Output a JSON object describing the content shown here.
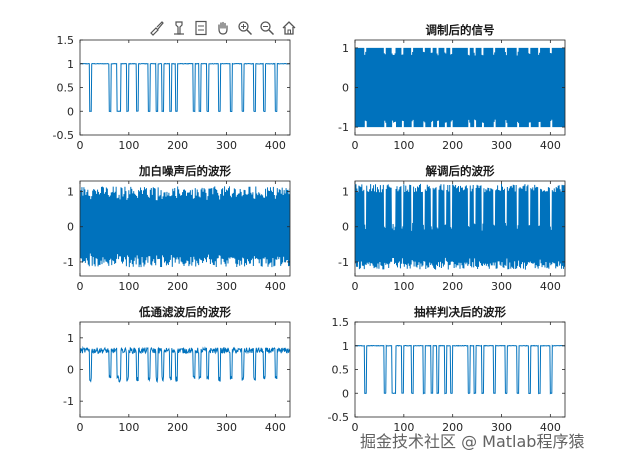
{
  "toolbar": {
    "icons": [
      "brush-icon",
      "data-tip-icon",
      "legend-icon",
      "pan-hand-icon",
      "zoom-in-icon",
      "zoom-out-icon",
      "home-icon"
    ]
  },
  "watermark": "掘金技术社区 @ Matlab程序猿",
  "colors": {
    "line": "#0072BD",
    "axis": "#262626",
    "background": "#ffffff"
  },
  "chart_data": [
    {
      "id": "p1",
      "type": "line",
      "title": "",
      "xlim": [
        0,
        430
      ],
      "ylim": [
        -0.5,
        1.5
      ],
      "xticks": [
        0,
        100,
        200,
        300,
        400
      ],
      "yticks": [
        -0.5,
        0,
        0.5,
        1,
        1.5
      ],
      "yticklabels": [
        "-0.5",
        "0",
        "0.5",
        "1",
        "1.5"
      ],
      "signal": "binary",
      "low": 0,
      "high": 1,
      "noise": 0.01,
      "bit_period": 4,
      "bits": [
        1,
        1,
        1,
        1,
        1,
        0,
        1,
        1,
        1,
        1,
        1,
        1,
        1,
        1,
        1,
        0,
        1,
        1,
        1,
        0,
        0,
        1,
        1,
        1,
        0,
        1,
        1,
        1,
        1,
        0,
        1,
        1,
        1,
        1,
        1,
        0,
        1,
        1,
        1,
        0,
        1,
        1,
        0,
        1,
        1,
        1,
        0,
        1,
        1,
        0,
        1,
        1,
        1,
        1,
        1,
        1,
        1,
        1,
        0,
        1,
        1,
        0,
        1,
        1,
        1,
        0,
        1,
        1,
        1,
        1,
        1,
        0,
        1,
        1,
        1,
        1,
        1,
        0,
        1,
        1,
        1,
        1,
        1,
        0,
        1,
        1,
        1,
        1,
        1,
        0,
        1,
        1,
        1,
        1,
        0,
        1,
        1,
        1,
        1,
        1,
        0,
        1,
        1,
        1,
        1,
        1,
        1
      ]
    },
    {
      "id": "p2",
      "type": "line",
      "title": "调制后的信号",
      "xlim": [
        0,
        430
      ],
      "ylim": [
        -1.2,
        1.2
      ],
      "xticks": [
        0,
        100,
        200,
        300,
        400
      ],
      "yticks": [
        -1,
        0,
        1
      ],
      "yticklabels": [
        "-1",
        "0",
        "1"
      ],
      "signal": "modulated",
      "amplitude": 1,
      "noise": 0.0,
      "bit_period": 4,
      "bits": [
        1,
        1,
        1,
        1,
        1,
        0,
        1,
        1,
        1,
        1,
        1,
        1,
        1,
        1,
        1,
        0,
        1,
        1,
        1,
        0,
        0,
        1,
        1,
        1,
        0,
        1,
        1,
        1,
        1,
        0,
        1,
        1,
        1,
        1,
        1,
        0,
        1,
        1,
        1,
        0,
        1,
        1,
        0,
        1,
        1,
        1,
        0,
        1,
        1,
        0,
        1,
        1,
        1,
        1,
        1,
        1,
        1,
        1,
        0,
        1,
        1,
        0,
        1,
        1,
        1,
        0,
        1,
        1,
        1,
        1,
        1,
        0,
        1,
        1,
        1,
        1,
        1,
        0,
        1,
        1,
        1,
        1,
        1,
        0,
        1,
        1,
        1,
        1,
        1,
        0,
        1,
        1,
        1,
        1,
        0,
        1,
        1,
        1,
        1,
        1,
        0,
        1,
        1,
        1,
        1,
        1,
        1
      ]
    },
    {
      "id": "p3",
      "type": "line",
      "title": "加白噪声后的波形",
      "xlim": [
        0,
        430
      ],
      "ylim": [
        -1.4,
        1.3
      ],
      "xticks": [
        0,
        100,
        200,
        300,
        400
      ],
      "yticks": [
        -1,
        0,
        1
      ],
      "yticklabels": [
        "-1",
        "0",
        "1"
      ],
      "signal": "modulated",
      "amplitude": 1,
      "noise": 0.12,
      "bit_period": 4,
      "bits": [
        1,
        1,
        1,
        1,
        1,
        0,
        1,
        1,
        1,
        1,
        1,
        1,
        1,
        1,
        1,
        0,
        1,
        1,
        1,
        0,
        0,
        1,
        1,
        1,
        0,
        1,
        1,
        1,
        1,
        0,
        1,
        1,
        1,
        1,
        1,
        0,
        1,
        1,
        1,
        0,
        1,
        1,
        0,
        1,
        1,
        1,
        0,
        1,
        1,
        0,
        1,
        1,
        1,
        1,
        1,
        1,
        1,
        1,
        0,
        1,
        1,
        0,
        1,
        1,
        1,
        0,
        1,
        1,
        1,
        1,
        1,
        0,
        1,
        1,
        1,
        1,
        1,
        0,
        1,
        1,
        1,
        1,
        1,
        0,
        1,
        1,
        1,
        1,
        1,
        0,
        1,
        1,
        1,
        1,
        0,
        1,
        1,
        1,
        1,
        1,
        0,
        1,
        1,
        1,
        1,
        1,
        1
      ]
    },
    {
      "id": "p4",
      "type": "line",
      "title": "解调后的波形",
      "xlim": [
        0,
        430
      ],
      "ylim": [
        -1.4,
        1.3
      ],
      "xticks": [
        0,
        100,
        200,
        300,
        400
      ],
      "yticks": [
        -1,
        0,
        1
      ],
      "yticklabels": [
        "-1",
        "0",
        "1"
      ],
      "signal": "demodulated",
      "amplitude": 1.1,
      "noise": 0.12,
      "bit_period": 4,
      "bits": [
        1,
        1,
        1,
        1,
        1,
        0,
        1,
        1,
        1,
        1,
        1,
        1,
        1,
        1,
        1,
        0,
        1,
        1,
        1,
        0,
        0,
        1,
        1,
        1,
        0,
        1,
        1,
        1,
        1,
        0,
        1,
        1,
        1,
        1,
        1,
        0,
        1,
        1,
        1,
        0,
        1,
        1,
        0,
        1,
        1,
        1,
        0,
        1,
        1,
        0,
        1,
        1,
        1,
        1,
        1,
        1,
        1,
        1,
        0,
        1,
        1,
        0,
        1,
        1,
        1,
        0,
        1,
        1,
        1,
        1,
        1,
        0,
        1,
        1,
        1,
        1,
        1,
        0,
        1,
        1,
        1,
        1,
        1,
        0,
        1,
        1,
        1,
        1,
        1,
        0,
        1,
        1,
        1,
        1,
        0,
        1,
        1,
        1,
        1,
        1,
        0,
        1,
        1,
        1,
        1,
        1,
        1
      ]
    },
    {
      "id": "p5",
      "type": "line",
      "title": "低通滤波后的波形",
      "xlim": [
        0,
        430
      ],
      "ylim": [
        -1.5,
        1.5
      ],
      "xticks": [
        0,
        100,
        200,
        300,
        400
      ],
      "yticks": [
        -1,
        0,
        1
      ],
      "yticklabels": [
        "-1",
        "0",
        "1"
      ],
      "signal": "filtered",
      "low": -0.3,
      "high": 0.6,
      "noise": 0.06,
      "bit_period": 4,
      "bits": [
        1,
        1,
        1,
        1,
        1,
        0,
        1,
        1,
        1,
        1,
        1,
        1,
        1,
        1,
        1,
        0,
        1,
        1,
        1,
        0,
        0,
        1,
        1,
        1,
        0,
        1,
        1,
        1,
        1,
        0,
        1,
        1,
        1,
        1,
        1,
        0,
        1,
        1,
        1,
        0,
        1,
        1,
        0,
        1,
        1,
        1,
        0,
        1,
        1,
        0,
        1,
        1,
        1,
        1,
        1,
        1,
        1,
        1,
        0,
        1,
        1,
        0,
        1,
        1,
        1,
        0,
        1,
        1,
        1,
        1,
        1,
        0,
        1,
        1,
        1,
        1,
        1,
        0,
        1,
        1,
        1,
        1,
        1,
        0,
        1,
        1,
        1,
        1,
        1,
        0,
        1,
        1,
        1,
        1,
        0,
        1,
        1,
        1,
        1,
        1,
        0,
        1,
        1,
        1,
        1,
        1,
        1
      ]
    },
    {
      "id": "p6",
      "type": "line",
      "title": "抽样判决后的波形",
      "xlim": [
        0,
        430
      ],
      "ylim": [
        -0.5,
        1.5
      ],
      "xticks": [
        0,
        100,
        200,
        300,
        400
      ],
      "yticks": [
        -0.5,
        0,
        0.5,
        1,
        1.5
      ],
      "yticklabels": [
        "-0.5",
        "0",
        "0.5",
        "1",
        "1.5"
      ],
      "signal": "binary",
      "low": 0,
      "high": 1,
      "noise": 0.01,
      "bit_period": 4,
      "bits": [
        1,
        1,
        1,
        1,
        1,
        0,
        1,
        1,
        1,
        1,
        1,
        1,
        1,
        1,
        1,
        0,
        1,
        1,
        1,
        0,
        0,
        1,
        1,
        1,
        0,
        1,
        1,
        1,
        1,
        0,
        1,
        1,
        1,
        1,
        1,
        0,
        1,
        1,
        1,
        0,
        1,
        1,
        0,
        1,
        1,
        1,
        0,
        1,
        1,
        0,
        1,
        1,
        1,
        1,
        1,
        1,
        1,
        1,
        0,
        1,
        1,
        0,
        1,
        1,
        1,
        0,
        1,
        1,
        1,
        1,
        1,
        0,
        1,
        1,
        1,
        1,
        1,
        0,
        1,
        1,
        1,
        1,
        1,
        0,
        1,
        1,
        1,
        1,
        1,
        0,
        1,
        1,
        1,
        1,
        0,
        1,
        1,
        1,
        1,
        1,
        0,
        1,
        1,
        1,
        1,
        1,
        1
      ]
    }
  ]
}
